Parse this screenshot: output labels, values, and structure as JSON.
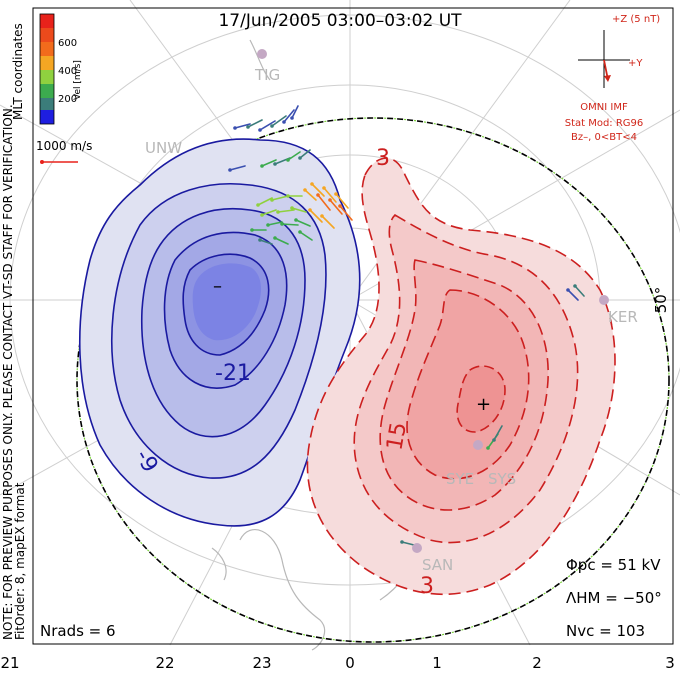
{
  "title": "17/Jun/2005 03:00–03:02 UT",
  "left_notes": {
    "coords": "MLT coordinates",
    "preview": "NOTE: FOR PREVIEW PURPOSES ONLY. PLEASE CONTACT VT-SD STAFF FOR VERIFICATION.",
    "fit": "FitOrder: 8, mapEX format"
  },
  "colorbar": {
    "label": "Vel [m/s]",
    "ticks": [
      "600",
      "400",
      "200"
    ],
    "colors": [
      "#e8221b",
      "#f26b1c",
      "#f5a623",
      "#8fd13f",
      "#3cab4e",
      "#3b7d7a",
      "#3a4fb0",
      "#1e1ee0"
    ]
  },
  "scale_label": "1000 m/s",
  "imf": {
    "z_label": "+Z (5 nT)",
    "y_label": "+Y",
    "source": "OMNI IMF",
    "stat_mod": "Stat Mod: RG96",
    "condition": "Bz–, 0<BT<4"
  },
  "stations": [
    "TIG",
    "UNW",
    "KER",
    "SYE",
    "SYS",
    "SAN"
  ],
  "lat_label": "50°",
  "neg_contours": [
    "-9",
    "-21"
  ],
  "pos_contours": [
    "3",
    "15",
    "3"
  ],
  "min_marker": "–",
  "max_marker": "+",
  "stats": {
    "phi_pc": "Φpc = 51 kV",
    "lambda_hm": "ΛHM = −50°",
    "n_vc": "Nvc = 103",
    "n_rads": "Nrads = 6"
  },
  "axis_labels": [
    "21",
    "22",
    "23",
    "0",
    "1",
    "2",
    "3"
  ],
  "colors": {
    "negative": "#1a1aa0",
    "positive": "#cc1f1f",
    "imf": "#d0261a",
    "map": "#b8b8b8",
    "grid": "#c8c8c8"
  }
}
